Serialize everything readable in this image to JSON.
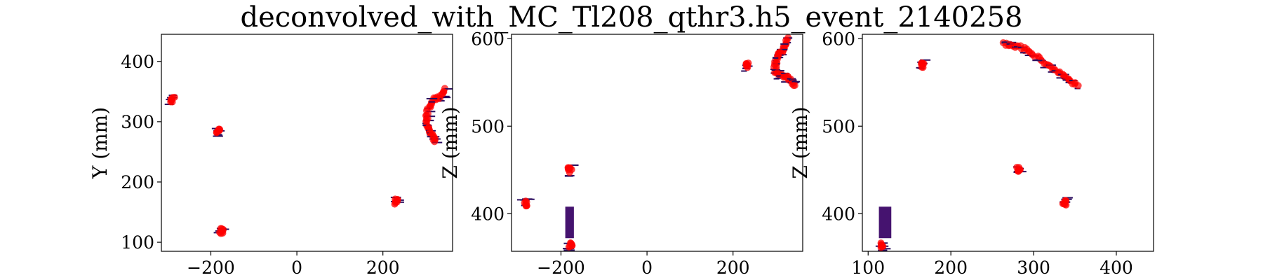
{
  "figure": {
    "title": "deconvolved_with_MC_Tl208_qthr3.h5_event_2140258"
  },
  "colors": {
    "reconstructed_points": "#ff0000",
    "deconvolved_hits": "#2b0d5e",
    "sensor_bar": "#45136f",
    "axes": "#000000"
  },
  "chart_data": [
    {
      "type": "scatter",
      "panel": "xy",
      "xlabel": "",
      "ylabel": "Y (mm)",
      "xlim": [
        -315,
        362
      ],
      "ylim": [
        85,
        445
      ],
      "xticks": [
        -200,
        0,
        200
      ],
      "yticks": [
        100,
        200,
        300,
        400
      ],
      "clusters": [
        {
          "x": -289,
          "y": 337
        },
        {
          "x": -182,
          "y": 284
        },
        {
          "x": -176,
          "y": 119
        },
        {
          "x": 232,
          "y": 167
        }
      ],
      "tracks": [
        {
          "points": [
            [
              345,
              354
            ],
            [
              334,
              340
            ],
            [
              318,
              338
            ],
            [
              306,
              324
            ],
            [
              302,
              306
            ],
            [
              304,
              292
            ],
            [
              310,
              282
            ],
            [
              318,
              274
            ],
            [
              322,
              266
            ]
          ]
        }
      ]
    },
    {
      "type": "scatter",
      "panel": "xz",
      "xlabel": "",
      "ylabel": "Z (mm)",
      "xlim": [
        -315,
        362
      ],
      "ylim": [
        357,
        605
      ],
      "xticks": [
        -200,
        0,
        200
      ],
      "yticks": [
        400,
        500,
        600
      ],
      "clusters": [
        {
          "x": -283,
          "y": 412
        },
        {
          "x": -180,
          "y": 450
        },
        {
          "x": -177,
          "y": 365
        },
        {
          "x": 232,
          "y": 569
        }
      ],
      "tracks": [
        {
          "points": [
            [
              326,
              600
            ],
            [
              320,
              590
            ],
            [
              312,
              585
            ],
            [
              304,
              581
            ],
            [
              298,
              572
            ],
            [
              298,
              562
            ],
            [
              308,
              558
            ],
            [
              324,
              556
            ],
            [
              336,
              552
            ],
            [
              344,
              546
            ]
          ]
        }
      ],
      "bars": [
        {
          "x0": -190,
          "x1": -170,
          "y0": 372,
          "y1": 408
        }
      ]
    },
    {
      "type": "scatter",
      "panel": "yz",
      "xlabel": "",
      "ylabel": "Z (mm)",
      "xlim": [
        93,
        445
      ],
      "ylim": [
        357,
        605
      ],
      "xticks": [
        100,
        200,
        300,
        400
      ],
      "yticks": [
        400,
        500,
        600
      ],
      "clusters": [
        {
          "x": 166,
          "y": 570
        },
        {
          "x": 282,
          "y": 450
        },
        {
          "x": 337,
          "y": 413
        },
        {
          "x": 118,
          "y": 364
        }
      ],
      "tracks": [
        {
          "points": [
            [
              264,
              594
            ],
            [
              274,
              592
            ],
            [
              286,
              590
            ],
            [
              298,
              584
            ],
            [
              310,
              574
            ],
            [
              322,
              566
            ],
            [
              334,
              558
            ],
            [
              344,
              552
            ],
            [
              355,
              546
            ]
          ]
        }
      ],
      "bars": [
        {
          "x0": 113,
          "x1": 128,
          "y0": 372,
          "y1": 408
        }
      ]
    }
  ]
}
